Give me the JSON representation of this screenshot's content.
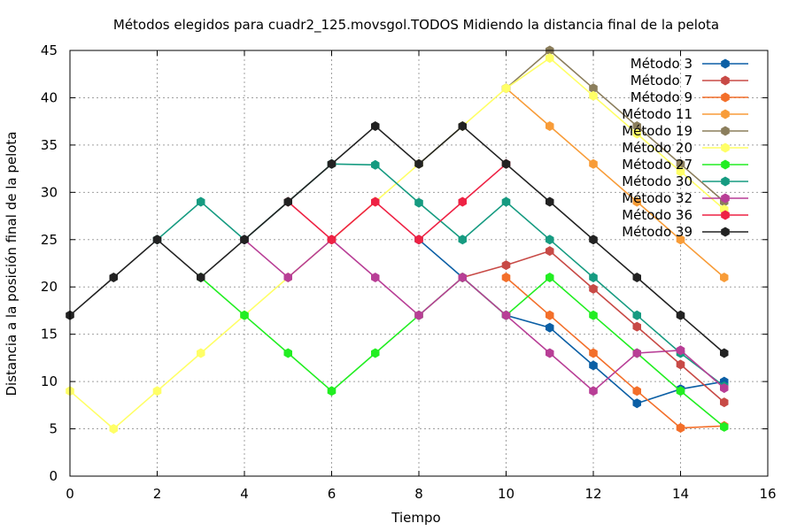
{
  "chart_data": {
    "type": "line",
    "title": "Métodos elegidos para cuadr2_125.movsgol.TODOS Midiendo la distancia final de la pelota",
    "xlabel": "Tiempo",
    "ylabel": "Distancia a la posición final de la pelota",
    "xlim": [
      0,
      16
    ],
    "ylim": [
      0,
      45
    ],
    "xticks": [
      0,
      2,
      4,
      6,
      8,
      10,
      12,
      14,
      16
    ],
    "yticks": [
      0,
      5,
      10,
      15,
      20,
      25,
      30,
      35,
      40,
      45
    ],
    "xtick_labels": [
      "0",
      "2",
      "4",
      "6",
      "8",
      "10",
      "12",
      "14",
      "16"
    ],
    "ytick_labels": [
      "0",
      "5",
      "10",
      "15",
      "20",
      "25",
      "30",
      "35",
      "40",
      "45"
    ],
    "grid": true,
    "legend_position": "top-right",
    "series": [
      {
        "name": "Método 3",
        "color": "#0b5fa5",
        "points": [
          [
            8,
            25
          ],
          [
            9,
            21
          ],
          [
            10,
            17
          ],
          [
            11,
            15.7
          ],
          [
            12,
            11.7
          ],
          [
            13,
            7.7
          ],
          [
            14,
            9.2
          ],
          [
            15,
            10
          ]
        ]
      },
      {
        "name": "Método 7",
        "color": "#c84a46",
        "points": [
          [
            9,
            21
          ],
          [
            10,
            22.3
          ],
          [
            11,
            23.8
          ],
          [
            12,
            19.8
          ],
          [
            13,
            15.8
          ],
          [
            14,
            11.8
          ],
          [
            15,
            7.8
          ]
        ]
      },
      {
        "name": "Método 9",
        "color": "#f36f2a",
        "points": [
          [
            10,
            21
          ],
          [
            11,
            17
          ],
          [
            12,
            13
          ],
          [
            13,
            9
          ],
          [
            14,
            5.1
          ],
          [
            15,
            5.3
          ]
        ]
      },
      {
        "name": "Método 11",
        "color": "#f89c38",
        "points": [
          [
            10,
            41
          ],
          [
            11,
            37
          ],
          [
            12,
            33
          ],
          [
            13,
            29
          ],
          [
            14,
            25
          ],
          [
            15,
            21
          ]
        ]
      },
      {
        "name": "Método 19",
        "color": "#8b7e5c",
        "points": [
          [
            10,
            41
          ],
          [
            11,
            45
          ],
          [
            12,
            41
          ],
          [
            13,
            37
          ],
          [
            14,
            33
          ],
          [
            15,
            29
          ]
        ]
      },
      {
        "name": "Método 20",
        "color": "#ffff66",
        "points": [
          [
            0,
            9
          ],
          [
            1,
            5
          ],
          [
            2,
            9
          ],
          [
            3,
            13
          ],
          [
            4,
            17
          ],
          [
            5,
            21
          ],
          [
            6,
            25
          ],
          [
            7,
            29
          ],
          [
            8,
            33
          ],
          [
            9,
            37
          ],
          [
            10,
            41
          ],
          [
            11,
            44.2
          ],
          [
            12,
            40.2
          ],
          [
            13,
            36.2
          ],
          [
            14,
            32.2
          ],
          [
            15,
            28.2
          ]
        ]
      },
      {
        "name": "Método 27",
        "color": "#22ee22",
        "points": [
          [
            3,
            21
          ],
          [
            4,
            17
          ],
          [
            5,
            13
          ],
          [
            6,
            9
          ],
          [
            7,
            13
          ],
          [
            8,
            17
          ],
          [
            9,
            21
          ],
          [
            10,
            17
          ],
          [
            11,
            21
          ],
          [
            12,
            17
          ],
          [
            13,
            13
          ],
          [
            14,
            9
          ],
          [
            15,
            5.2
          ]
        ]
      },
      {
        "name": "Método 30",
        "color": "#169b81",
        "points": [
          [
            2,
            25
          ],
          [
            3,
            29
          ],
          [
            4,
            25
          ],
          [
            6,
            33
          ],
          [
            7,
            32.9
          ],
          [
            8,
            28.9
          ],
          [
            9,
            25
          ],
          [
            10,
            29
          ],
          [
            11,
            25
          ],
          [
            12,
            21
          ],
          [
            13,
            17
          ],
          [
            14,
            13
          ],
          [
            15,
            9.5
          ]
        ]
      },
      {
        "name": "Método 32",
        "color": "#b83e96",
        "points": [
          [
            4,
            25
          ],
          [
            5,
            21
          ],
          [
            6,
            25
          ],
          [
            7,
            21
          ],
          [
            8,
            17
          ],
          [
            9,
            21
          ],
          [
            10,
            17
          ],
          [
            11,
            13
          ],
          [
            12,
            9
          ],
          [
            13,
            13
          ],
          [
            14,
            13.3
          ],
          [
            15,
            9.3
          ]
        ]
      },
      {
        "name": "Método 36",
        "color": "#ee2244",
        "points": [
          [
            5,
            29
          ],
          [
            6,
            25
          ],
          [
            7,
            29
          ],
          [
            8,
            25
          ],
          [
            9,
            29
          ],
          [
            10,
            33
          ]
        ]
      },
      {
        "name": "Método 39",
        "color": "#222222",
        "points": [
          [
            0,
            17
          ],
          [
            1,
            21
          ],
          [
            2,
            25
          ],
          [
            3,
            21
          ],
          [
            4,
            25
          ],
          [
            5,
            29
          ],
          [
            6,
            33
          ],
          [
            7,
            37
          ],
          [
            8,
            33
          ],
          [
            9,
            37
          ],
          [
            10,
            33
          ],
          [
            11,
            29
          ],
          [
            12,
            25
          ],
          [
            13,
            21
          ],
          [
            14,
            17
          ],
          [
            15,
            13
          ]
        ]
      }
    ]
  }
}
